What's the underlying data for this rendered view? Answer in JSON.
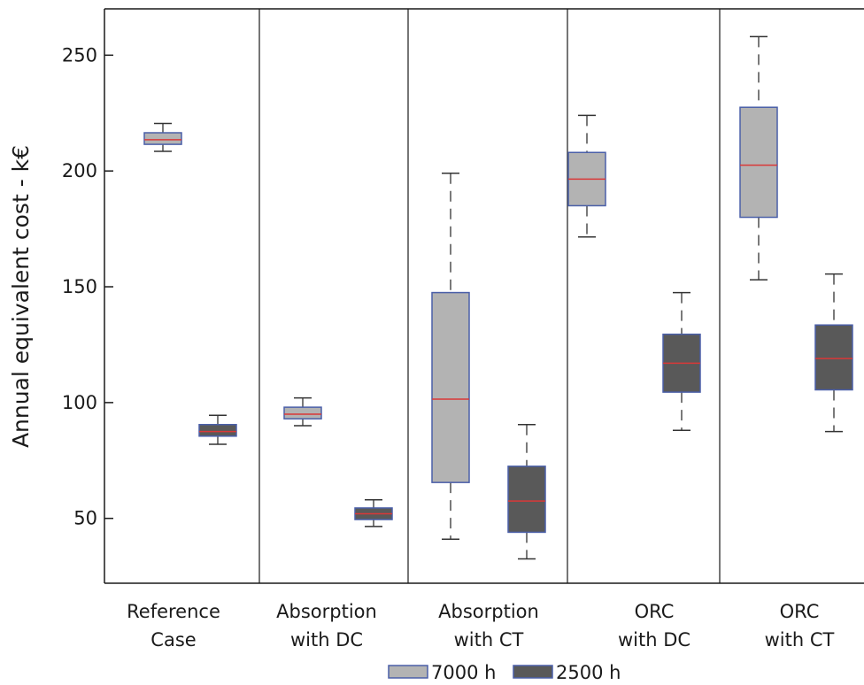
{
  "chart_data": {
    "type": "boxplot",
    "ylabel": "Annual equivalent cost - k€",
    "ylim": [
      22,
      270
    ],
    "yticks": [
      50,
      100,
      150,
      200,
      250
    ],
    "categories": [
      [
        "Reference",
        "Case"
      ],
      [
        "Absorption",
        "with DC"
      ],
      [
        "Absorption",
        "with CT"
      ],
      [
        "ORC",
        "with DC"
      ],
      [
        "ORC",
        "with CT"
      ]
    ],
    "series": [
      {
        "name": "7000 h",
        "fill": "#b3b3b3",
        "boxes": [
          {
            "min": 208.5,
            "q1": 211.5,
            "median": 213.5,
            "q3": 216.5,
            "max": 220.5
          },
          {
            "min": 90,
            "q1": 93,
            "median": 95,
            "q3": 98,
            "max": 102
          },
          {
            "min": 41,
            "q1": 65.5,
            "median": 101.5,
            "q3": 147.5,
            "max": 199
          },
          {
            "min": 171.5,
            "q1": 185,
            "median": 196.5,
            "q3": 208,
            "max": 224
          },
          {
            "min": 153,
            "q1": 180,
            "median": 202.5,
            "q3": 227.5,
            "max": 258
          }
        ]
      },
      {
        "name": "2500 h",
        "fill": "#595959",
        "boxes": [
          {
            "min": 82,
            "q1": 85.5,
            "median": 87.5,
            "q3": 90.5,
            "max": 94.5
          },
          {
            "min": 46.5,
            "q1": 49.5,
            "median": 52,
            "q3": 54.5,
            "max": 58
          },
          {
            "min": 32.5,
            "q1": 44,
            "median": 57.5,
            "q3": 72.5,
            "max": 90.5
          },
          {
            "min": 88,
            "q1": 104.5,
            "median": 117,
            "q3": 129.5,
            "max": 147.5
          },
          {
            "min": 87.5,
            "q1": 105.5,
            "median": 119,
            "q3": 133.5,
            "max": 155.5
          }
        ]
      }
    ],
    "colors": {
      "box_outline": "#4a5fa8",
      "median": "#d93838",
      "whisker": "#333333",
      "frame": "#1a1a1a"
    },
    "legend": {
      "placement": "bottom-center"
    },
    "grid": false
  }
}
